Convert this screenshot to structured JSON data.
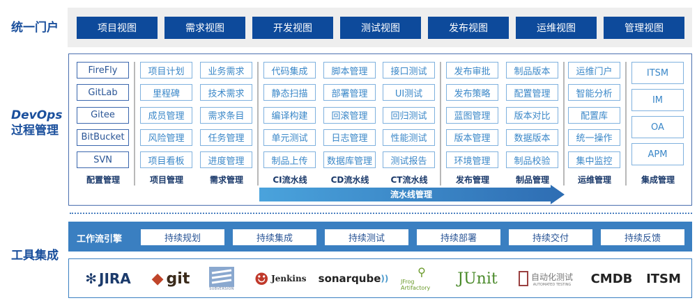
{
  "sections": {
    "portal": "统一门户",
    "devops_line1": "DevOps",
    "devops_line2": "过程管理",
    "tools": "工具集成"
  },
  "portal_views": [
    "项目视图",
    "需求视图",
    "开发视图",
    "测试视图",
    "发布视图",
    "运维视图",
    "管理视图"
  ],
  "columns": [
    {
      "label": "配置管理",
      "items": [
        "FireFly",
        "GitLab",
        "Gitee",
        "BitBucket",
        "SVN"
      ]
    },
    {
      "label": "项目管理",
      "items": [
        "项目计划",
        "里程碑",
        "成员管理",
        "风险管理",
        "项目看板"
      ]
    },
    {
      "label": "需求管理",
      "items": [
        "业务需求",
        "技术需求",
        "需求条目",
        "任务管理",
        "进度管理"
      ]
    },
    {
      "label": "CI流水线",
      "items": [
        "代码集成",
        "静态扫描",
        "编译构建",
        "单元测试",
        "制品上传"
      ]
    },
    {
      "label": "CD流水线",
      "items": [
        "脚本管理",
        "部署管理",
        "回滚管理",
        "日志管理",
        "数据库管理"
      ]
    },
    {
      "label": "CT流水线",
      "items": [
        "接口测试",
        "UI测试",
        "回归测试",
        "性能测试",
        "测试报告"
      ]
    },
    {
      "label": "发布管理",
      "items": [
        "发布审批",
        "发布策略",
        "蓝图管理",
        "版本管理",
        "环境管理"
      ]
    },
    {
      "label": "制品管理",
      "items": [
        "制品版本",
        "配置管理",
        "版本对比",
        "数据版本",
        "制品校验"
      ]
    },
    {
      "label": "运维管理",
      "items": [
        "运维门户",
        "智能分析",
        "配置库",
        "统一操作",
        "集中监控"
      ]
    },
    {
      "label": "集成管理",
      "items": [
        "ITSM",
        "IM",
        "OA",
        "APM"
      ]
    }
  ],
  "pipeline_arrow": "流水线管理",
  "workflow": {
    "label": "工作流引擎",
    "items": [
      "持续规划",
      "持续集成",
      "持续测试",
      "持续部署",
      "持续交付",
      "持续反馈"
    ]
  },
  "tool_logos": [
    "JIRA",
    "git",
    "Subversion",
    "Jenkins",
    "sonarqube",
    "JFrog Artifactory",
    "JUnit",
    "自动化测试",
    "AUTOMATED TESTING",
    "CMDB",
    "ITSM"
  ],
  "colors": {
    "primary": "#0d4a9b",
    "workflow": "#3a7fc1",
    "cell_border": "#7fb1de",
    "cell_text": "#3a87c8"
  }
}
